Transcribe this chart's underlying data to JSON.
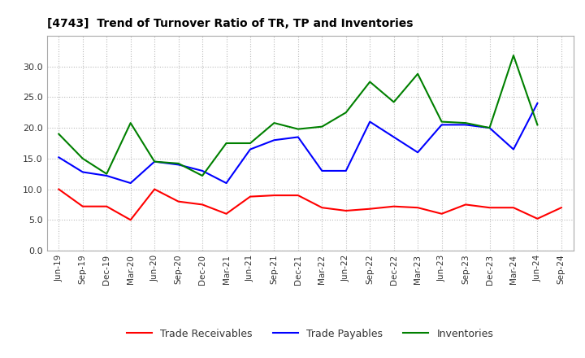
{
  "title": "[4743]  Trend of Turnover Ratio of TR, TP and Inventories",
  "labels": [
    "Jun-19",
    "Sep-19",
    "Dec-19",
    "Mar-20",
    "Jun-20",
    "Sep-20",
    "Dec-20",
    "Mar-21",
    "Jun-21",
    "Sep-21",
    "Dec-21",
    "Mar-22",
    "Jun-22",
    "Sep-22",
    "Dec-22",
    "Mar-23",
    "Jun-23",
    "Sep-23",
    "Dec-23",
    "Mar-24",
    "Jun-24",
    "Sep-24"
  ],
  "trade_receivables": [
    10.0,
    7.2,
    7.2,
    5.0,
    10.0,
    8.0,
    7.5,
    6.0,
    8.8,
    9.0,
    9.0,
    7.0,
    6.5,
    6.8,
    7.2,
    7.0,
    6.0,
    7.5,
    7.0,
    7.0,
    5.2,
    7.0
  ],
  "trade_payables": [
    15.2,
    12.8,
    12.2,
    11.0,
    14.5,
    14.0,
    13.0,
    11.0,
    16.5,
    18.0,
    18.5,
    13.0,
    13.0,
    21.0,
    18.5,
    16.0,
    20.5,
    20.5,
    20.0,
    16.5,
    24.0,
    null
  ],
  "inventories": [
    19.0,
    15.0,
    12.5,
    20.8,
    14.5,
    14.2,
    12.2,
    17.5,
    17.5,
    20.8,
    19.8,
    20.2,
    22.5,
    27.5,
    24.2,
    28.8,
    21.0,
    20.8,
    20.0,
    31.8,
    20.5,
    null
  ],
  "ylim": [
    0,
    35
  ],
  "yticks": [
    0.0,
    5.0,
    10.0,
    15.0,
    20.0,
    25.0,
    30.0
  ],
  "tr_color": "#ff0000",
  "tp_color": "#0000ff",
  "inv_color": "#008000",
  "background_color": "#ffffff",
  "grid_color": "#aaaaaa",
  "legend_labels": [
    "Trade Receivables",
    "Trade Payables",
    "Inventories"
  ]
}
